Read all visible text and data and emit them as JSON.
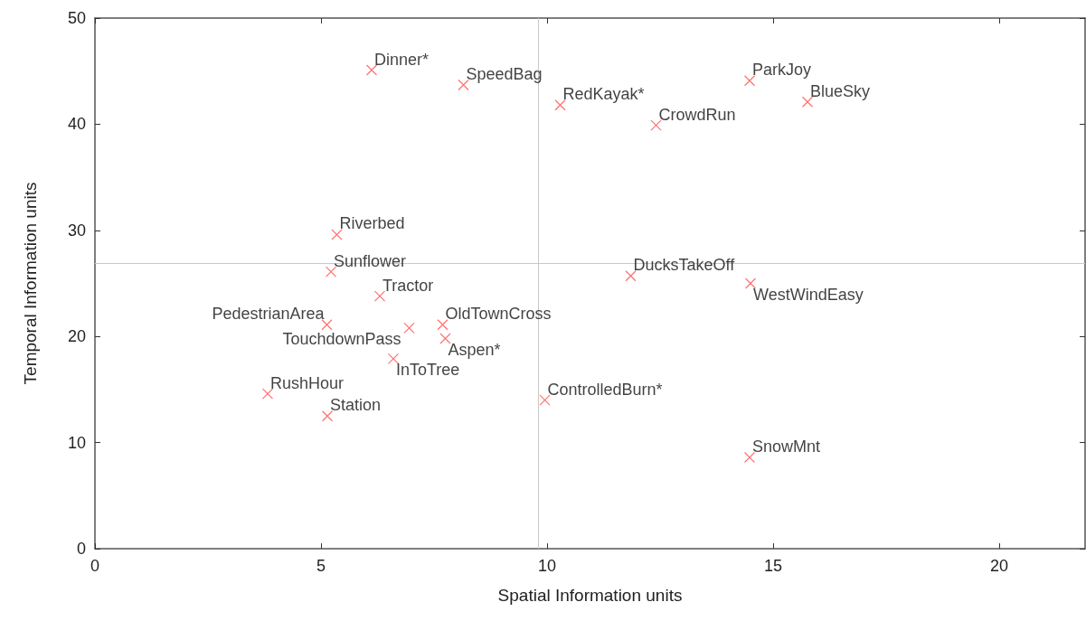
{
  "chart_data": {
    "type": "scatter",
    "xlabel": "Spatial Information units",
    "ylabel": "Temporal Information units",
    "x": [
      6.12,
      8.15,
      10.29,
      12.41,
      14.48,
      15.76,
      5.35,
      5.22,
      6.3,
      11.85,
      14.5,
      5.13,
      6.95,
      7.69,
      7.75,
      6.6,
      3.82,
      5.14,
      9.95,
      14.48
    ],
    "values": [
      45.1,
      43.7,
      41.8,
      39.9,
      44.1,
      42.1,
      29.6,
      26.1,
      23.8,
      25.7,
      25.0,
      21.1,
      20.8,
      21.1,
      19.8,
      17.9,
      14.6,
      12.5,
      14.0,
      8.6
    ],
    "color": "#ff4c4c",
    "marker": "cross",
    "xlim": [
      0,
      21.9
    ],
    "xticks": [
      0,
      5,
      10,
      15,
      20
    ],
    "ylim": [
      0,
      50
    ],
    "yticks": [
      0,
      10,
      20,
      30,
      40,
      50
    ],
    "grid": false,
    "ref_lines": [
      {
        "axis": "x",
        "value": 9.81,
        "color": "#c8c8c8"
      },
      {
        "axis": "y",
        "value": 26.9,
        "color": "#c8c8c8"
      }
    ],
    "annotations": [
      {
        "text": "Dinner*",
        "x": 6.12,
        "y": 45.1
      },
      {
        "text": "SpeedBag",
        "x": 8.15,
        "y": 43.7
      },
      {
        "text": "RedKayak*",
        "x": 10.29,
        "y": 41.8
      },
      {
        "text": "CrowdRun",
        "x": 12.41,
        "y": 39.9
      },
      {
        "text": "ParkJoy",
        "x": 14.48,
        "y": 44.1
      },
      {
        "text": "BlueSky",
        "x": 15.76,
        "y": 42.1
      },
      {
        "text": "Riverbed",
        "x": 5.35,
        "y": 29.6
      },
      {
        "text": "Sunflower",
        "x": 5.22,
        "y": 26.1
      },
      {
        "text": "Tractor",
        "x": 6.3,
        "y": 23.8
      },
      {
        "text": "DucksTakeOff",
        "x": 11.85,
        "y": 25.7
      },
      {
        "text": "WestWindEasy",
        "x": 14.5,
        "y": 25.0
      },
      {
        "text": "PedestrianArea",
        "x": 5.13,
        "y": 21.1
      },
      {
        "text": "TouchdownPass",
        "x": 6.95,
        "y": 20.8
      },
      {
        "text": "OldTownCross",
        "x": 7.69,
        "y": 21.1
      },
      {
        "text": "Aspen*",
        "x": 7.75,
        "y": 19.8
      },
      {
        "text": "InToTree",
        "x": 6.6,
        "y": 17.9
      },
      {
        "text": "RushHour",
        "x": 3.82,
        "y": 14.6
      },
      {
        "text": "Station",
        "x": 5.14,
        "y": 12.5
      },
      {
        "text": "ControlledBurn*",
        "x": 9.95,
        "y": 14.0
      },
      {
        "text": "SnowMnt",
        "x": 14.48,
        "y": 8.6
      }
    ]
  }
}
